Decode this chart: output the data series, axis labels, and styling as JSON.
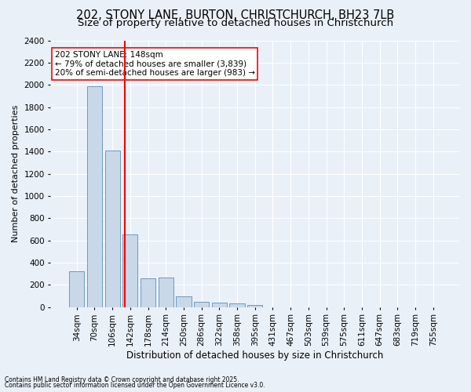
{
  "title": "202, STONY LANE, BURTON, CHRISTCHURCH, BH23 7LB",
  "subtitle": "Size of property relative to detached houses in Christchurch",
  "xlabel": "Distribution of detached houses by size in Christchurch",
  "ylabel": "Number of detached properties",
  "categories": [
    "34sqm",
    "70sqm",
    "106sqm",
    "142sqm",
    "178sqm",
    "214sqm",
    "250sqm",
    "286sqm",
    "322sqm",
    "358sqm",
    "395sqm",
    "431sqm",
    "467sqm",
    "503sqm",
    "539sqm",
    "575sqm",
    "611sqm",
    "647sqm",
    "683sqm",
    "719sqm",
    "755sqm"
  ],
  "values": [
    325,
    1990,
    1410,
    655,
    260,
    265,
    100,
    45,
    40,
    35,
    20,
    0,
    0,
    0,
    0,
    0,
    0,
    0,
    0,
    0,
    0
  ],
  "bar_color": "#c8d8e8",
  "bar_edge_color": "#5b8db8",
  "redline_index": 2.72,
  "annotation_title": "202 STONY LANE: 148sqm",
  "annotation_line1": "← 79% of detached houses are smaller (3,839)",
  "annotation_line2": "20% of semi-detached houses are larger (983) →",
  "footnote1": "Contains HM Land Registry data © Crown copyright and database right 2025.",
  "footnote2": "Contains public sector information licensed under the Open Government Licence v3.0.",
  "ylim": [
    0,
    2400
  ],
  "background_color": "#eaf0f8",
  "plot_bg_color": "#eaf0f8",
  "grid_color": "#ffffff",
  "title_fontsize": 10.5,
  "subtitle_fontsize": 9.5,
  "ylabel_fontsize": 8,
  "xlabel_fontsize": 8.5,
  "tick_fontsize": 7.5,
  "annot_fontsize": 7.5
}
